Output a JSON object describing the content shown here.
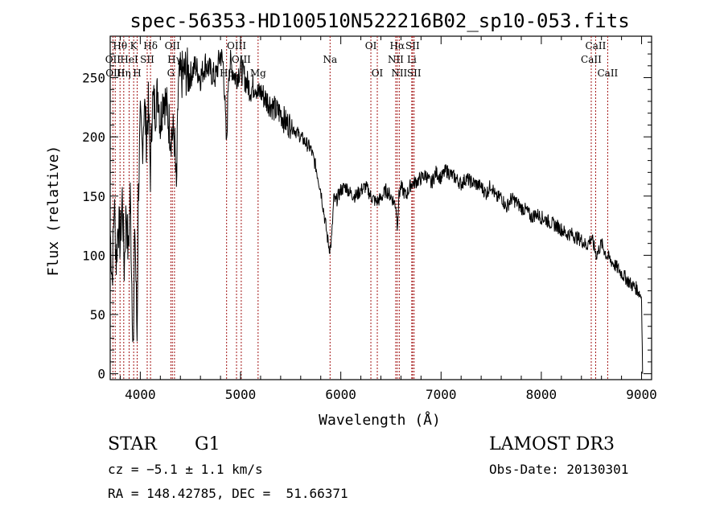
{
  "chart_data": {
    "type": "line",
    "title": "spec-56353-HD100510N522216B02_sp10-053.fits",
    "xlabel": "Wavelength (Å)",
    "ylabel": "Flux (relative)",
    "xlim": [
      3700,
      9100
    ],
    "ylim": [
      -5,
      285
    ],
    "x_ticks": [
      4000,
      5000,
      6000,
      7000,
      8000,
      9000
    ],
    "y_ticks": [
      0,
      50,
      100,
      150,
      200,
      250
    ],
    "grid": false,
    "series": [
      {
        "x": [
          3700,
          3720,
          3740,
          3760,
          3780,
          3800,
          3820,
          3840,
          3860,
          3880,
          3900,
          3920,
          3933,
          3945,
          3968,
          3980,
          4000,
          4020,
          4040,
          4060,
          4080,
          4101,
          4120,
          4150,
          4180,
          4200,
          4230,
          4260,
          4300,
          4340,
          4360,
          4380,
          4400,
          4450,
          4500,
          4550,
          4600,
          4650,
          4700,
          4750,
          4800,
          4830,
          4861,
          4880,
          4900,
          4950,
          5000,
          5050,
          5100,
          5150,
          5175,
          5200,
          5250,
          5300,
          5350,
          5400,
          5450,
          5500,
          5550,
          5600,
          5650,
          5700,
          5750,
          5800,
          5850,
          5875,
          5893,
          5910,
          5930,
          5950,
          6000,
          6050,
          6100,
          6150,
          6200,
          6250,
          6300,
          6350,
          6400,
          6450,
          6500,
          6550,
          6563,
          6580,
          6600,
          6650,
          6700,
          6750,
          6800,
          6850,
          6900,
          6950,
          7000,
          7050,
          7100,
          7150,
          7200,
          7250,
          7300,
          7350,
          7400,
          7450,
          7500,
          7550,
          7600,
          7650,
          7700,
          7750,
          7800,
          7850,
          7900,
          7950,
          8000,
          8050,
          8100,
          8150,
          8200,
          8250,
          8300,
          8350,
          8400,
          8450,
          8500,
          8550,
          8600,
          8650,
          8700,
          8750,
          8800,
          8850,
          8900,
          8950,
          9000,
          9010
        ],
        "y": [
          120,
          80,
          145,
          95,
          130,
          110,
          150,
          90,
          140,
          100,
          150,
          60,
          20,
          130,
          30,
          150,
          210,
          190,
          230,
          200,
          225,
          170,
          230,
          225,
          240,
          210,
          238,
          225,
          205,
          200,
          150,
          245,
          250,
          255,
          252,
          260,
          250,
          262,
          255,
          250,
          270,
          260,
          190,
          255,
          262,
          250,
          258,
          248,
          240,
          245,
          235,
          238,
          232,
          228,
          222,
          220,
          212,
          210,
          205,
          200,
          195,
          190,
          175,
          155,
          125,
          110,
          105,
          115,
          148,
          145,
          155,
          158,
          152,
          150,
          155,
          158,
          150,
          145,
          148,
          155,
          150,
          142,
          125,
          150,
          158,
          150,
          160,
          162,
          165,
          168,
          160,
          170,
          165,
          172,
          168,
          165,
          160,
          165,
          162,
          160,
          158,
          152,
          160,
          148,
          150,
          140,
          148,
          145,
          140,
          138,
          132,
          135,
          132,
          130,
          127,
          125,
          122,
          118,
          118,
          115,
          113,
          108,
          115,
          100,
          110,
          100,
          95,
          90,
          85,
          80,
          75,
          72,
          65,
          0
        ]
      }
    ],
    "lines": [
      {
        "label": "Hθ",
        "wavelength": 3798,
        "row": 0
      },
      {
        "label": "OII",
        "wavelength": 3727,
        "row": 1
      },
      {
        "label": "OIII",
        "wavelength": 3750,
        "row": 2
      },
      {
        "label": "Hη",
        "wavelength": 3835,
        "row": 2
      },
      {
        "label": "HeI",
        "wavelength": 3889,
        "row": 1
      },
      {
        "label": "K",
        "wavelength": 3934,
        "row": 0
      },
      {
        "label": "SII",
        "wavelength": 4069,
        "row": 1
      },
      {
        "label": "H",
        "wavelength": 3969,
        "row": 2
      },
      {
        "label": "Hδ",
        "wavelength": 4102,
        "row": 0
      },
      {
        "label": "OII",
        "wavelength": 4320,
        "row": 0
      },
      {
        "label": "Hγ",
        "wavelength": 4341,
        "row": 1
      },
      {
        "label": "G",
        "wavelength": 4305,
        "row": 2
      },
      {
        "label": "OIII",
        "wavelength": 4960,
        "row": 0
      },
      {
        "label": "OIII",
        "wavelength": 5007,
        "row": 1
      },
      {
        "label": "Hβ",
        "wavelength": 4861,
        "row": 2
      },
      {
        "label": "Mg",
        "wavelength": 5175,
        "row": 2
      },
      {
        "label": "Na",
        "wavelength": 5893,
        "row": 1
      },
      {
        "label": "OI",
        "wavelength": 6300,
        "row": 0
      },
      {
        "label": "OI",
        "wavelength": 6364,
        "row": 2
      },
      {
        "label": "Hα",
        "wavelength": 6563,
        "row": 0
      },
      {
        "label": "NII",
        "wavelength": 6548,
        "row": 1
      },
      {
        "label": "NII",
        "wavelength": 6583,
        "row": 2
      },
      {
        "label": "SII",
        "wavelength": 6716,
        "row": 0
      },
      {
        "label": "Li",
        "wavelength": 6708,
        "row": 1
      },
      {
        "label": "SII",
        "wavelength": 6731,
        "row": 2
      },
      {
        "label": "CaII",
        "wavelength": 8542,
        "row": 0
      },
      {
        "label": "CaII",
        "wavelength": 8498,
        "row": 1
      },
      {
        "label": "CaII",
        "wavelength": 8662,
        "row": 2
      }
    ]
  },
  "info": {
    "object_type": "STAR",
    "subclass": "G1",
    "cz": "cz = −5.1 ± 1.1 km/s",
    "coords": "RA = 148.42785, DEC =  51.66371",
    "survey": "LAMOST DR3",
    "obs_date": "Obs-Date: 20130301"
  },
  "colors": {
    "line_marker": "#a31515",
    "spectrum": "#000000",
    "axes": "#000000"
  }
}
